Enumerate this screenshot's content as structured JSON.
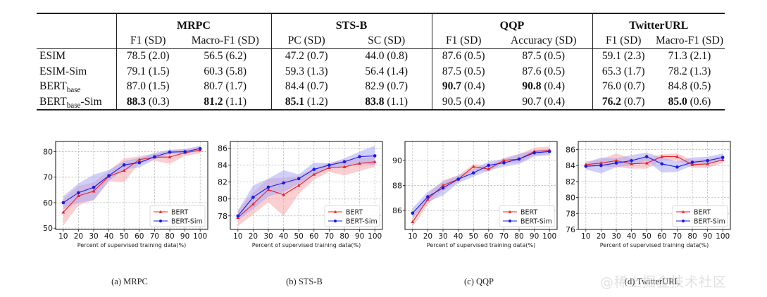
{
  "table": {
    "groups": [
      {
        "name": "MRPC",
        "metrics": [
          "F1 (SD)",
          "Macro-F1 (SD)"
        ]
      },
      {
        "name": "STS-B",
        "metrics": [
          "PC (SD)",
          "SC (SD)"
        ]
      },
      {
        "name": "QQP",
        "metrics": [
          "F1 (SD)",
          "Accuracy (SD)"
        ]
      },
      {
        "name": "TwitterURL",
        "metrics": [
          "F1 (SD)",
          "Macro-F1 (SD)"
        ]
      }
    ],
    "rows": [
      {
        "model": "ESIM",
        "model_sub": "",
        "model_suffix": "",
        "cells": [
          {
            "v": "78.5",
            "sd": "(2.0)",
            "bold": false
          },
          {
            "v": "56.5",
            "sd": "(6.2)",
            "bold": false
          },
          {
            "v": "47.2",
            "sd": "(0.7)",
            "bold": false
          },
          {
            "v": "44.0",
            "sd": "(0.8)",
            "bold": false
          },
          {
            "v": "87.6",
            "sd": "(0.5)",
            "bold": false
          },
          {
            "v": "87.5",
            "sd": "(0.5)",
            "bold": false
          },
          {
            "v": "59.1",
            "sd": "(2.3)",
            "bold": false
          },
          {
            "v": "71.3",
            "sd": "(2.1)",
            "bold": false
          }
        ]
      },
      {
        "model": "ESIM-Sim",
        "model_sub": "",
        "model_suffix": "",
        "cells": [
          {
            "v": "79.1",
            "sd": "(1.5)",
            "bold": false
          },
          {
            "v": "60.3",
            "sd": "(5.8)",
            "bold": false
          },
          {
            "v": "59.3",
            "sd": "(1.3)",
            "bold": false
          },
          {
            "v": "56.4",
            "sd": "(1.4)",
            "bold": false
          },
          {
            "v": "87.5",
            "sd": "(0.5)",
            "bold": false
          },
          {
            "v": "87.6",
            "sd": "(0.5)",
            "bold": false
          },
          {
            "v": "65.3",
            "sd": "(1.7)",
            "bold": false
          },
          {
            "v": "78.2",
            "sd": "(1.3)",
            "bold": false
          }
        ]
      },
      {
        "model": "BERT",
        "model_sub": "base",
        "model_suffix": "",
        "cells": [
          {
            "v": "87.0",
            "sd": "(1.5)",
            "bold": false
          },
          {
            "v": "80.7",
            "sd": "(1.7)",
            "bold": false
          },
          {
            "v": "84.4",
            "sd": "(0.7)",
            "bold": false
          },
          {
            "v": "82.9",
            "sd": "(0.7)",
            "bold": false
          },
          {
            "v": "90.7",
            "sd": "(0.4)",
            "bold": true
          },
          {
            "v": "90.8",
            "sd": "(0.4)",
            "bold": true
          },
          {
            "v": "76.0",
            "sd": "(0.7)",
            "bold": false
          },
          {
            "v": "84.8",
            "sd": "(0.5)",
            "bold": false
          }
        ]
      },
      {
        "model": "BERT",
        "model_sub": "base",
        "model_suffix": "-Sim",
        "cells": [
          {
            "v": "88.3",
            "sd": "(0.3)",
            "bold": true
          },
          {
            "v": "81.2",
            "sd": "(1.1)",
            "bold": true
          },
          {
            "v": "85.1",
            "sd": "(1.2)",
            "bold": true
          },
          {
            "v": "83.8",
            "sd": "(1.1)",
            "bold": true
          },
          {
            "v": "90.5",
            "sd": "(0.4)",
            "bold": false
          },
          {
            "v": "90.7",
            "sd": "(0.4)",
            "bold": false
          },
          {
            "v": "76.2",
            "sd": "(0.7)",
            "bold": true
          },
          {
            "v": "85.0",
            "sd": "(0.6)",
            "bold": true
          }
        ]
      }
    ]
  },
  "colors": {
    "bert": "#e8202a",
    "bert_sim": "#1a1ae6",
    "bert_band": "#f7a8ab",
    "bert_sim_band": "#a8a8f5",
    "grid": "#b0b0b0"
  },
  "chart_data": [
    {
      "type": "line",
      "caption": "(a)  MRPC",
      "xlabel": "Percent of supervised training data(%)",
      "ylabel": "",
      "x": [
        10,
        20,
        30,
        40,
        50,
        60,
        70,
        80,
        90,
        100
      ],
      "xticks": [
        "10",
        "20",
        "30",
        "40",
        "50",
        "60",
        "70",
        "80",
        "90",
        "100"
      ],
      "ylim": [
        49.5,
        84
      ],
      "yticks": [
        50,
        60,
        70,
        80
      ],
      "ytick_labels": [
        "50",
        "60",
        "70",
        "80"
      ],
      "grid": true,
      "legend": "lower-right",
      "series": [
        {
          "name": "BERT",
          "marker": "triangle",
          "values": [
            56.2,
            62.7,
            64.5,
            70.3,
            72.6,
            76.9,
            77.8,
            77.9,
            79.6,
            80.6
          ],
          "band_low": [
            51.0,
            59.0,
            61.0,
            68.3,
            68.0,
            75.5,
            76.5,
            75.2,
            78.3,
            79.3
          ],
          "band_high": [
            61.5,
            66.5,
            68.0,
            72.5,
            77.3,
            78.2,
            79.2,
            80.6,
            81.0,
            82.0
          ]
        },
        {
          "name": "BERT-Sim",
          "marker": "circle",
          "values": [
            60.0,
            63.9,
            66.0,
            70.6,
            74.8,
            75.7,
            78.0,
            79.8,
            80.0,
            81.2
          ],
          "band_low": [
            57.5,
            60.0,
            61.0,
            68.5,
            73.0,
            73.8,
            77.0,
            79.0,
            79.2,
            80.3
          ],
          "band_high": [
            62.5,
            67.5,
            71.0,
            72.8,
            76.3,
            77.5,
            79.5,
            80.8,
            81.0,
            82.3
          ]
        }
      ]
    },
    {
      "type": "line",
      "caption": "(b)  STS-B",
      "xlabel": "Percent of supervised training data(%)",
      "ylabel": "",
      "x": [
        10,
        20,
        30,
        40,
        50,
        60,
        70,
        80,
        90,
        100
      ],
      "xticks": [
        "10",
        "20",
        "30",
        "40",
        "50",
        "60",
        "70",
        "80",
        "90",
        "100"
      ],
      "ylim": [
        76.4,
        86.8
      ],
      "yticks": [
        78,
        80,
        82,
        84,
        86
      ],
      "ytick_labels": [
        "78",
        "80",
        "82",
        "84",
        "86"
      ],
      "grid": true,
      "legend": "lower-right",
      "series": [
        {
          "name": "BERT",
          "marker": "triangle",
          "values": [
            77.8,
            79.4,
            81.1,
            80.5,
            81.6,
            82.9,
            83.7,
            83.8,
            84.2,
            84.4
          ],
          "band_low": [
            76.8,
            78.2,
            79.6,
            78.0,
            80.6,
            82.3,
            83.2,
            82.8,
            83.3,
            83.8
          ],
          "band_high": [
            78.7,
            80.8,
            82.4,
            82.5,
            82.7,
            83.6,
            84.3,
            84.6,
            84.8,
            85.0
          ]
        },
        {
          "name": "BERT-Sim",
          "marker": "circle",
          "values": [
            78.0,
            80.2,
            81.4,
            81.9,
            82.4,
            83.5,
            84.0,
            84.4,
            85.0,
            85.1
          ],
          "band_low": [
            77.5,
            78.8,
            80.3,
            80.8,
            81.8,
            82.8,
            83.6,
            83.9,
            84.2,
            84.0
          ],
          "band_high": [
            78.6,
            81.6,
            82.4,
            83.4,
            82.9,
            84.3,
            84.2,
            84.8,
            85.6,
            86.3
          ]
        }
      ]
    },
    {
      "type": "line",
      "caption": "(c)  QQP",
      "xlabel": "Percent of supervised training data(%)",
      "ylabel": "",
      "x": [
        10,
        20,
        30,
        40,
        50,
        60,
        70,
        80,
        90,
        100
      ],
      "xticks": [
        "10",
        "20",
        "30",
        "40",
        "50",
        "60",
        "70",
        "80",
        "90",
        "100"
      ],
      "ylim": [
        84.5,
        91.5
      ],
      "yticks": [
        86,
        88,
        90
      ],
      "ytick_labels": [
        "86",
        "88",
        "90"
      ],
      "grid": true,
      "legend": "lower-right",
      "series": [
        {
          "name": "BERT",
          "marker": "triangle",
          "values": [
            85.1,
            86.9,
            88.0,
            88.5,
            89.5,
            89.3,
            90.0,
            90.1,
            90.7,
            90.8
          ],
          "band_low": [
            84.7,
            86.5,
            87.6,
            88.3,
            89.2,
            89.1,
            89.8,
            89.8,
            90.4,
            90.5
          ],
          "band_high": [
            85.6,
            87.3,
            88.4,
            88.8,
            89.7,
            89.6,
            90.2,
            90.5,
            91.0,
            91.1
          ]
        },
        {
          "name": "BERT-Sim",
          "marker": "circle",
          "values": [
            85.8,
            87.1,
            87.8,
            88.5,
            89.0,
            89.6,
            89.8,
            90.1,
            90.6,
            90.7
          ],
          "band_low": [
            85.4,
            86.7,
            87.2,
            88.2,
            88.7,
            89.2,
            89.5,
            89.7,
            90.3,
            90.4
          ],
          "band_high": [
            86.2,
            87.5,
            88.3,
            88.8,
            89.3,
            89.9,
            90.1,
            90.5,
            90.8,
            90.9
          ]
        }
      ]
    },
    {
      "type": "line",
      "caption": "(d)  TwitterURL",
      "xlabel": "Percent of supervised training data(%)",
      "ylabel": "",
      "x": [
        10,
        20,
        30,
        40,
        50,
        60,
        70,
        80,
        90,
        100
      ],
      "xticks": [
        "10",
        "20",
        "30",
        "40",
        "50",
        "60",
        "70",
        "80",
        "90",
        "100"
      ],
      "ylim": [
        76,
        87
      ],
      "yticks": [
        76,
        78,
        80,
        82,
        84,
        86
      ],
      "ytick_labels": [
        "76",
        "78",
        "80",
        "82",
        "84",
        "86"
      ],
      "grid": true,
      "legend": "lower-right",
      "series": [
        {
          "name": "BERT",
          "marker": "triangle",
          "values": [
            84.1,
            84.3,
            84.6,
            84.2,
            84.3,
            85.1,
            85.1,
            84.1,
            84.2,
            84.7
          ],
          "band_low": [
            83.8,
            83.9,
            83.8,
            83.6,
            83.6,
            84.6,
            84.6,
            83.7,
            83.7,
            84.3
          ],
          "band_high": [
            84.5,
            84.8,
            85.5,
            84.9,
            84.9,
            85.4,
            85.5,
            84.7,
            84.8,
            85.2
          ]
        },
        {
          "name": "BERT-Sim",
          "marker": "circle",
          "values": [
            83.9,
            84.0,
            84.3,
            84.6,
            85.1,
            84.2,
            83.8,
            84.4,
            84.6,
            85.0
          ],
          "band_low": [
            83.5,
            83.0,
            83.8,
            84.0,
            84.6,
            83.1,
            83.2,
            84.0,
            84.2,
            84.6
          ],
          "band_high": [
            84.3,
            85.0,
            84.9,
            85.3,
            85.6,
            85.0,
            84.5,
            85.0,
            85.1,
            85.5
          ]
        }
      ]
    }
  ],
  "watermark": "@稀土掘金技术社区"
}
